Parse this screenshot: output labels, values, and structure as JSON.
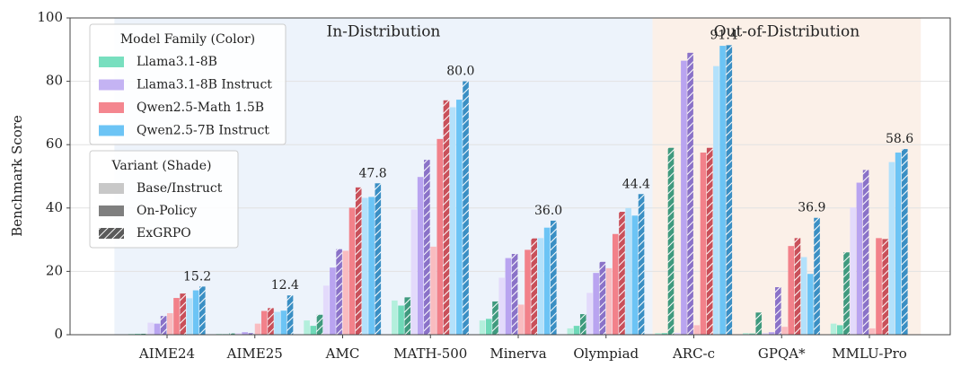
{
  "chart_data": {
    "type": "grouped-bar",
    "y_label": "Benchmark Score",
    "categories": [
      "AIME24",
      "AIME25",
      "AMC",
      "MATH-500",
      "Minerva",
      "Olympiad",
      "ARC-c",
      "GPQA*",
      "MMLU-Pro"
    ],
    "ylim": [
      0,
      100
    ],
    "yticks": [
      0,
      20,
      40,
      60,
      80,
      100
    ],
    "grid": true,
    "regions": [
      {
        "label": "In-Distribution",
        "color": "#edf3fb",
        "first": 0,
        "last": 5
      },
      {
        "label": "Out-of-Distribution",
        "color": "#fbf0e8",
        "first": 6,
        "last": 8
      }
    ],
    "family_legend_title": "Model Family (Color)",
    "variant_legend_title": "Variant (Shade)",
    "variants": [
      {
        "name": "Base/Instruct",
        "color": "#c8c8c8",
        "hatch": false
      },
      {
        "name": "On-Policy",
        "color": "#7f7f7f",
        "hatch": false
      },
      {
        "name": "ExGRPO",
        "color": "#5a5a5a",
        "hatch": true
      }
    ],
    "series": [
      {
        "name": "Llama3.1-8B",
        "color": "#78dfbf",
        "colors": [
          "#b3efdc",
          "#6fd9b8",
          "#3f9a7e"
        ],
        "values": [
          [
            0.3,
            0.3,
            4.5,
            10.8,
            4.5,
            2.0,
            0.5,
            0.5,
            3.5
          ],
          [
            0.3,
            0.2,
            2.8,
            9.2,
            5.0,
            2.8,
            0.5,
            0.4,
            3.0
          ],
          [
            0.3,
            0.4,
            6.3,
            11.8,
            10.5,
            6.5,
            59.0,
            7.0,
            26.0
          ]
        ]
      },
      {
        "name": "Llama3.1-8B Instruct",
        "color": "#c4b3f3",
        "colors": [
          "#e3dafb",
          "#b9a4f0",
          "#8a72c8"
        ],
        "values": [
          [
            3.8,
            0.5,
            15.5,
            39.5,
            18.0,
            13.2,
            0.6,
            0.5,
            40.2
          ],
          [
            3.5,
            0.8,
            21.2,
            49.8,
            24.2,
            19.5,
            86.5,
            0.8,
            48.0
          ],
          [
            5.9,
            0.5,
            27.0,
            55.2,
            25.5,
            23.0,
            89.0,
            15.0,
            52.0
          ]
        ]
      },
      {
        "name": "Qwen2.5-Math 1.5B",
        "color": "#f4868f",
        "colors": [
          "#f9bcc0",
          "#f2818a",
          "#c9505a"
        ],
        "values": [
          [
            6.8,
            3.5,
            26.5,
            27.8,
            9.5,
            21.0,
            3.0,
            2.5,
            2.0
          ],
          [
            11.6,
            7.5,
            40.1,
            61.8,
            26.8,
            31.8,
            57.5,
            28.0,
            30.5
          ],
          [
            13.0,
            8.4,
            46.5,
            74.0,
            30.4,
            38.8,
            59.0,
            30.5,
            30.2
          ]
        ]
      },
      {
        "name": "Qwen2.5-7B Instruct",
        "color": "#6cc4f5",
        "colors": [
          "#b3e1fb",
          "#6cc4f5",
          "#3a8fc4"
        ],
        "values": [
          [
            11.5,
            7.2,
            43.2,
            71.8,
            30.5,
            40.0,
            84.8,
            24.5,
            54.5
          ],
          [
            14.0,
            7.6,
            43.5,
            74.2,
            33.8,
            37.6,
            91.2,
            19.2,
            57.5
          ],
          [
            15.2,
            12.4,
            47.8,
            80.0,
            36.0,
            44.4,
            91.4,
            36.9,
            58.6
          ]
        ],
        "value_labels": [
          null,
          null,
          [
            "15.2",
            "12.4",
            "47.8",
            "80.0",
            "36.0",
            "44.4",
            "91.4",
            "36.9",
            "58.6"
          ]
        ]
      }
    ]
  }
}
